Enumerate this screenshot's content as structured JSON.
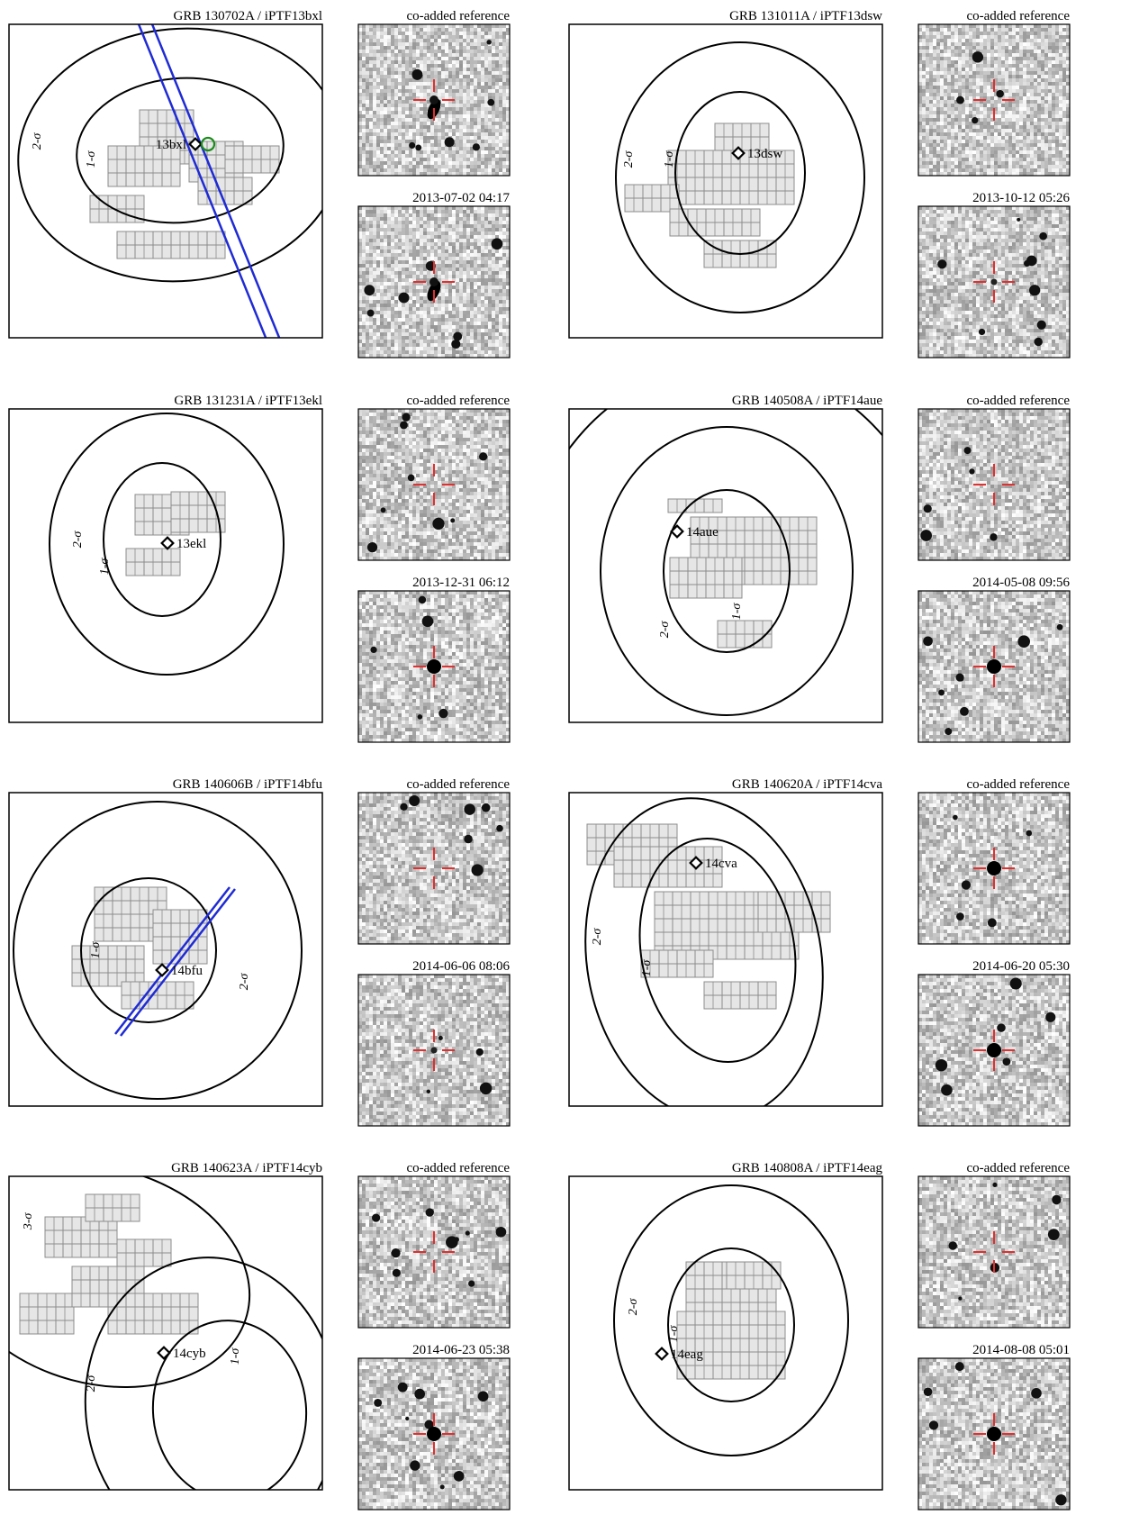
{
  "figure": {
    "panels": [
      {
        "grb_label": "GRB 130702A / iPTF13bxl",
        "marker_label": "13bxl",
        "contour_labels": [
          "1-σ",
          "2-σ"
        ],
        "ref_title": "co-added reference",
        "new_title": "2013-07-02 04:17",
        "has_ipn_band": true,
        "has_green_circle": true,
        "ref_source": "extended",
        "new_source": "extended"
      },
      {
        "grb_label": "GRB 131011A / iPTF13dsw",
        "marker_label": "13dsw",
        "contour_labels": [
          "1-σ",
          "2-σ"
        ],
        "ref_title": "co-added reference",
        "new_title": "2013-10-12 05:26",
        "has_ipn_band": false,
        "has_green_circle": false,
        "ref_source": "none",
        "new_source": "faint"
      },
      {
        "grb_label": "GRB 131231A / iPTF13ekl",
        "marker_label": "13ekl",
        "contour_labels": [
          "1-σ",
          "2-σ"
        ],
        "ref_title": "co-added reference",
        "new_title": "2013-12-31 06:12",
        "has_ipn_band": false,
        "has_green_circle": false,
        "ref_source": "none",
        "new_source": "bright"
      },
      {
        "grb_label": "GRB 140508A / iPTF14aue",
        "marker_label": "14aue",
        "contour_labels": [
          "1-σ",
          "2-σ"
        ],
        "ref_title": "co-added reference",
        "new_title": "2014-05-08 09:56",
        "has_ipn_band": false,
        "has_green_circle": false,
        "ref_source": "none",
        "new_source": "bright"
      },
      {
        "grb_label": "GRB 140606B / iPTF14bfu",
        "marker_label": "14bfu",
        "contour_labels": [
          "1-σ",
          "2-σ"
        ],
        "ref_title": "co-added reference",
        "new_title": "2014-06-06 08:06",
        "has_ipn_band": true,
        "has_green_circle": false,
        "ref_source": "none",
        "new_source": "faint"
      },
      {
        "grb_label": "GRB 140620A / iPTF14cva",
        "marker_label": "14cva",
        "contour_labels": [
          "1-σ",
          "2-σ"
        ],
        "ref_title": "co-added reference",
        "new_title": "2014-06-20 05:30",
        "has_ipn_band": false,
        "has_green_circle": false,
        "ref_source": "bright",
        "new_source": "bright"
      },
      {
        "grb_label": "GRB 140623A / iPTF14cyb",
        "marker_label": "14cyb",
        "contour_labels": [
          "1-σ",
          "2-σ",
          "3-σ"
        ],
        "ref_title": "co-added reference",
        "new_title": "2014-06-23 05:38",
        "has_ipn_band": false,
        "has_green_circle": false,
        "ref_source": "none",
        "new_source": "bright"
      },
      {
        "grb_label": "GRB 140808A / iPTF14eag",
        "marker_label": "14eag",
        "contour_labels": [
          "1-σ",
          "2-σ"
        ],
        "ref_title": "co-added reference",
        "new_title": "2014-08-08 05:01",
        "has_ipn_band": false,
        "has_green_circle": false,
        "ref_source": "none",
        "new_source": "bright"
      }
    ]
  },
  "colors": {
    "frame": "#000000",
    "contour": "#000000",
    "tile_fill": "#e6e6e6",
    "tile_stroke": "#8c8c8c",
    "ipn_band": "#1f2bd4",
    "green_circle": "#1a8a1a",
    "crosshair": "#e03030",
    "cutout_bg": "#d8d8d8"
  }
}
